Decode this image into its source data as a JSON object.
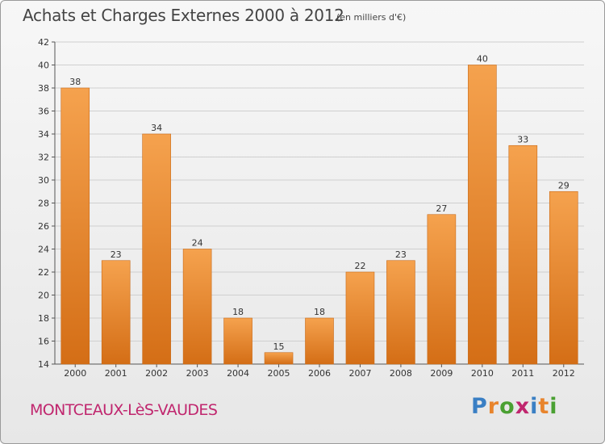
{
  "title": "Achats et Charges Externes 2000 à 2012",
  "subtitle": "(en milliers d'€)",
  "location": "MONTCEAUX-LèS-VAUDES",
  "brand": {
    "text": "Proxiti",
    "letter_colors": [
      "#3a7fc4",
      "#e8842c",
      "#4aa032",
      "#c0266e",
      "#3a7fc4",
      "#e8842c",
      "#4aa032"
    ]
  },
  "chart_data": {
    "type": "bar",
    "categories": [
      "2000",
      "2001",
      "2002",
      "2003",
      "2004",
      "2005",
      "2006",
      "2007",
      "2008",
      "2009",
      "2010",
      "2011",
      "2012"
    ],
    "values": [
      38,
      23,
      34,
      24,
      18,
      15,
      18,
      22,
      23,
      27,
      40,
      33,
      29
    ],
    "ylim": [
      14,
      42
    ],
    "yticks": [
      14,
      16,
      18,
      20,
      22,
      24,
      26,
      28,
      30,
      32,
      34,
      36,
      38,
      40,
      42
    ],
    "grid": true,
    "bar_color": "#f0963c",
    "xlabel": "",
    "ylabel": ""
  }
}
